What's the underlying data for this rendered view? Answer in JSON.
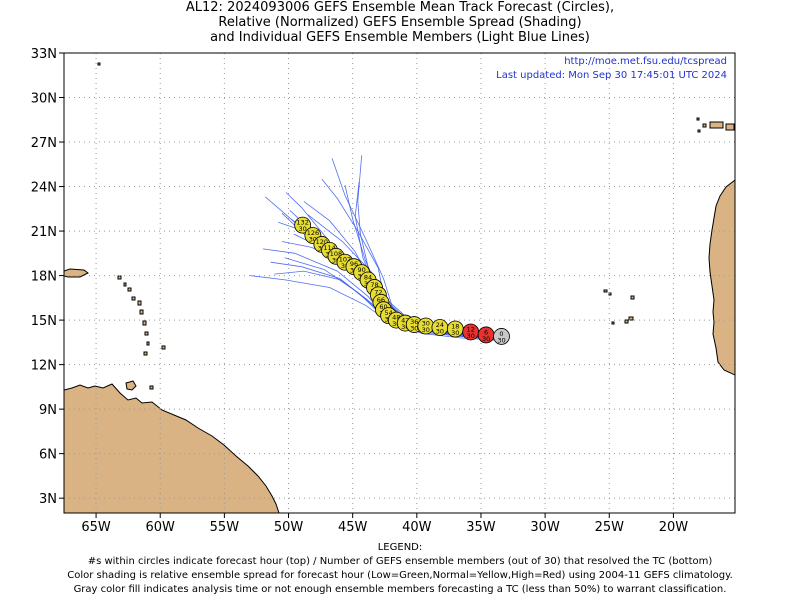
{
  "title": {
    "line1": "AL12: 2024093006 GEFS Ensemble Mean Track Forecast (Circles),",
    "line2": "Relative (Normalized) GEFS Ensemble Spread (Shading)",
    "line3": "and Individual GEFS Ensemble Members (Light Blue Lines)"
  },
  "info": {
    "url": "http://moe.met.fsu.edu/tcspread",
    "updated": "Last updated: Mon Sep 30 17:45:01 UTC 2024"
  },
  "axes": {
    "x_ticks": [
      "65W",
      "60W",
      "55W",
      "50W",
      "45W",
      "40W",
      "35W",
      "30W",
      "25W",
      "20W"
    ],
    "x_tick_values": [
      -65,
      -60,
      -55,
      -50,
      -45,
      -40,
      -35,
      -30,
      -25,
      -20
    ],
    "y_ticks": [
      "33N",
      "30N",
      "27N",
      "24N",
      "21N",
      "18N",
      "15N",
      "12N",
      "9N",
      "6N",
      "3N"
    ],
    "y_tick_values": [
      33,
      30,
      27,
      24,
      21,
      18,
      15,
      12,
      9,
      6,
      3
    ],
    "lon_range": [
      -67.5,
      -15.2
    ],
    "lat_range": [
      2.0,
      33.0
    ],
    "grid": true
  },
  "colors": {
    "land": "#d9b383",
    "ocean": "#ffffff",
    "member_line": "#3355ee",
    "gray_fill": "#c8c8c8",
    "yellow_fill": "#e6dc32",
    "red_fill": "#e83232",
    "coast": "#000000",
    "grid": "#999999"
  },
  "chart_data": {
    "type": "scatter",
    "description_series": "GEFS ensemble mean track",
    "points": [
      {
        "hour": "0",
        "members": "30",
        "lon": -33.4,
        "lat": 13.9,
        "spread": "gray"
      },
      {
        "hour": "6",
        "members": "30",
        "lon": -34.6,
        "lat": 14.0,
        "spread": "red"
      },
      {
        "hour": "12",
        "members": "30",
        "lon": -35.8,
        "lat": 14.2,
        "spread": "red"
      },
      {
        "hour": "18",
        "members": "30",
        "lon": -37.0,
        "lat": 14.4,
        "spread": "yellow"
      },
      {
        "hour": "24",
        "members": "30",
        "lon": -38.2,
        "lat": 14.5,
        "spread": "yellow"
      },
      {
        "hour": "30",
        "members": "30",
        "lon": -39.3,
        "lat": 14.6,
        "spread": "yellow"
      },
      {
        "hour": "36",
        "members": "30",
        "lon": -40.2,
        "lat": 14.7,
        "spread": "yellow"
      },
      {
        "hour": "42",
        "members": "30",
        "lon": -40.9,
        "lat": 14.8,
        "spread": "yellow"
      },
      {
        "hour": "48",
        "members": "30",
        "lon": -41.6,
        "lat": 15.0,
        "spread": "yellow"
      },
      {
        "hour": "54",
        "members": "30",
        "lon": -42.2,
        "lat": 15.3,
        "spread": "yellow"
      },
      {
        "hour": "60",
        "members": "30",
        "lon": -42.6,
        "lat": 15.7,
        "spread": "yellow"
      },
      {
        "hour": "66",
        "members": "30",
        "lon": -42.8,
        "lat": 16.2,
        "spread": "yellow"
      },
      {
        "hour": "72",
        "members": "30",
        "lon": -43.0,
        "lat": 16.7,
        "spread": "yellow"
      },
      {
        "hour": "78",
        "members": "30",
        "lon": -43.3,
        "lat": 17.2,
        "spread": "yellow"
      },
      {
        "hour": "84",
        "members": "30",
        "lon": -43.8,
        "lat": 17.7,
        "spread": "yellow"
      },
      {
        "hour": "90",
        "members": "30",
        "lon": -44.3,
        "lat": 18.2,
        "spread": "yellow"
      },
      {
        "hour": "96",
        "members": "30",
        "lon": -44.9,
        "lat": 18.6,
        "spread": "yellow"
      },
      {
        "hour": "102",
        "members": "30",
        "lon": -45.6,
        "lat": 18.9,
        "spread": "yellow"
      },
      {
        "hour": "108",
        "members": "30",
        "lon": -46.3,
        "lat": 19.3,
        "spread": "yellow"
      },
      {
        "hour": "114",
        "members": "30",
        "lon": -46.8,
        "lat": 19.7,
        "spread": "yellow"
      },
      {
        "hour": "120",
        "members": "30",
        "lon": -47.4,
        "lat": 20.1,
        "spread": "yellow"
      },
      {
        "hour": "126",
        "members": "30",
        "lon": -48.1,
        "lat": 20.7,
        "spread": "yellow"
      },
      {
        "hour": "132",
        "members": "30",
        "lon": -48.9,
        "lat": 21.4,
        "spread": "yellow"
      }
    ],
    "member_tracks": [
      [
        [
          -33.2,
          13.6
        ],
        [
          -36.5,
          13.9
        ],
        [
          -39.5,
          14.3
        ],
        [
          -42.0,
          15.3
        ],
        [
          -43.2,
          17.0
        ],
        [
          -45.5,
          18.8
        ],
        [
          -49.0,
          21.2
        ],
        [
          -51.8,
          23.3
        ]
      ],
      [
        [
          -33.4,
          13.8
        ],
        [
          -37.0,
          14.2
        ],
        [
          -40.0,
          14.5
        ],
        [
          -42.3,
          15.6
        ],
        [
          -43.6,
          17.4
        ],
        [
          -46.0,
          19.0
        ],
        [
          -48.8,
          20.8
        ],
        [
          -50.5,
          22.2
        ]
      ],
      [
        [
          -33.5,
          13.9
        ],
        [
          -37.2,
          14.3
        ],
        [
          -40.8,
          14.7
        ],
        [
          -42.8,
          15.7
        ],
        [
          -43.9,
          17.9
        ],
        [
          -46.5,
          19.8
        ],
        [
          -49.8,
          21.8
        ]
      ],
      [
        [
          -33.3,
          13.7
        ],
        [
          -36.9,
          14.0
        ],
        [
          -40.2,
          14.4
        ],
        [
          -42.4,
          15.1
        ],
        [
          -43.8,
          16.6
        ],
        [
          -46.2,
          18.3
        ],
        [
          -49.5,
          19.5
        ],
        [
          -52.0,
          19.8
        ]
      ],
      [
        [
          -33.4,
          13.8
        ],
        [
          -37.1,
          14.1
        ],
        [
          -40.1,
          14.5
        ],
        [
          -41.8,
          15.6
        ],
        [
          -42.6,
          17.8
        ],
        [
          -44.0,
          20.5
        ],
        [
          -45.6,
          23.4
        ],
        [
          -46.6,
          25.9
        ]
      ],
      [
        [
          -33.5,
          13.9
        ],
        [
          -37.4,
          14.4
        ],
        [
          -40.5,
          14.8
        ],
        [
          -42.5,
          16.3
        ],
        [
          -43.0,
          18.5
        ],
        [
          -44.6,
          21.0
        ],
        [
          -46.2,
          23.2
        ],
        [
          -47.4,
          24.5
        ]
      ],
      [
        [
          -33.2,
          13.7
        ],
        [
          -36.6,
          13.9
        ],
        [
          -39.8,
          14.2
        ],
        [
          -42.2,
          14.9
        ],
        [
          -44.0,
          16.0
        ],
        [
          -46.8,
          17.2
        ],
        [
          -50.2,
          17.7
        ],
        [
          -53.0,
          18.0
        ]
      ],
      [
        [
          -33.4,
          13.8
        ],
        [
          -36.8,
          14.1
        ],
        [
          -40.0,
          14.5
        ],
        [
          -42.6,
          15.2
        ],
        [
          -44.5,
          16.8
        ],
        [
          -47.2,
          18.4
        ],
        [
          -50.3,
          19.2
        ]
      ],
      [
        [
          -33.3,
          13.8
        ],
        [
          -37.0,
          14.2
        ],
        [
          -40.3,
          14.7
        ],
        [
          -42.0,
          16.0
        ],
        [
          -43.0,
          17.6
        ],
        [
          -45.2,
          19.2
        ],
        [
          -47.8,
          20.7
        ],
        [
          -50.8,
          21.6
        ]
      ],
      [
        [
          -33.5,
          14.0
        ],
        [
          -37.6,
          14.6
        ],
        [
          -40.8,
          15.2
        ],
        [
          -42.9,
          16.8
        ],
        [
          -44.0,
          19.0
        ],
        [
          -45.0,
          21.8
        ],
        [
          -45.6,
          24.1
        ]
      ],
      [
        [
          -33.4,
          13.9
        ],
        [
          -37.3,
          14.3
        ],
        [
          -40.6,
          14.9
        ],
        [
          -43.0,
          16.2
        ],
        [
          -44.8,
          18.0
        ],
        [
          -47.0,
          20.5
        ],
        [
          -49.0,
          22.6
        ],
        [
          -50.2,
          23.6
        ]
      ],
      [
        [
          -33.3,
          13.7
        ],
        [
          -36.7,
          14.0
        ],
        [
          -39.9,
          14.3
        ],
        [
          -42.1,
          15.0
        ],
        [
          -43.7,
          16.2
        ],
        [
          -46.0,
          17.8
        ],
        [
          -49.0,
          18.6
        ],
        [
          -51.4,
          18.9
        ]
      ],
      [
        [
          -33.4,
          13.8
        ],
        [
          -37.0,
          14.2
        ],
        [
          -40.4,
          14.6
        ],
        [
          -42.4,
          15.8
        ],
        [
          -43.3,
          17.3
        ],
        [
          -44.2,
          19.2
        ],
        [
          -44.8,
          22.0
        ],
        [
          -44.5,
          24.3
        ]
      ],
      [
        [
          -33.5,
          13.9
        ],
        [
          -37.2,
          14.3
        ],
        [
          -40.7,
          14.8
        ],
        [
          -42.7,
          16.0
        ],
        [
          -43.5,
          18.2
        ],
        [
          -45.8,
          20.3
        ],
        [
          -48.5,
          22.1
        ]
      ],
      [
        [
          -33.2,
          13.6
        ],
        [
          -36.6,
          13.8
        ],
        [
          -39.6,
          14.1
        ],
        [
          -41.9,
          14.9
        ],
        [
          -43.9,
          16.4
        ],
        [
          -45.9,
          17.7
        ],
        [
          -48.8,
          18.3
        ],
        [
          -51.1,
          18.1
        ]
      ],
      [
        [
          -33.4,
          13.8
        ],
        [
          -37.0,
          14.1
        ],
        [
          -40.1,
          14.6
        ],
        [
          -42.3,
          15.5
        ],
        [
          -43.8,
          17.1
        ],
        [
          -45.7,
          18.9
        ],
        [
          -48.2,
          19.9
        ],
        [
          -50.5,
          20.3
        ]
      ],
      [
        [
          -33.3,
          13.8
        ],
        [
          -37.1,
          14.2
        ],
        [
          -40.5,
          14.6
        ],
        [
          -42.6,
          15.9
        ],
        [
          -43.6,
          17.6
        ],
        [
          -44.8,
          19.6
        ],
        [
          -46.8,
          21.7
        ],
        [
          -48.8,
          23.0
        ]
      ],
      [
        [
          -33.5,
          13.9
        ],
        [
          -37.5,
          14.4
        ],
        [
          -40.9,
          15.0
        ],
        [
          -42.8,
          16.6
        ],
        [
          -43.8,
          18.6
        ],
        [
          -44.4,
          20.8
        ],
        [
          -44.6,
          23.0
        ],
        [
          -44.3,
          26.1
        ]
      ],
      [
        [
          -33.4,
          13.8
        ],
        [
          -36.9,
          14.1
        ],
        [
          -40.0,
          14.4
        ],
        [
          -42.0,
          15.4
        ],
        [
          -43.3,
          16.9
        ],
        [
          -45.4,
          18.6
        ],
        [
          -47.7,
          20.0
        ],
        [
          -49.6,
          20.8
        ]
      ],
      [
        [
          -33.3,
          13.7
        ],
        [
          -36.8,
          14.0
        ],
        [
          -39.9,
          14.4
        ],
        [
          -42.2,
          15.4
        ],
        [
          -43.4,
          17.0
        ],
        [
          -45.0,
          18.7
        ],
        [
          -47.4,
          20.4
        ],
        [
          -49.9,
          22.4
        ]
      ]
    ]
  },
  "land_labels": [],
  "legend": {
    "heading": "LEGEND:",
    "line1": "#s within circles indicate forecast hour (top) / Number of GEFS ensemble members (out of 30) that resolved the TC (bottom)",
    "line2": "Color shading is relative ensemble spread for forecast hour (Low=Green,Normal=Yellow,High=Red) using 2004-11 GEFS climatology.",
    "line3": "Gray color fill indicates analysis time or not enough ensemble members forecasting a TC (less than 50%) to warrant classification."
  }
}
